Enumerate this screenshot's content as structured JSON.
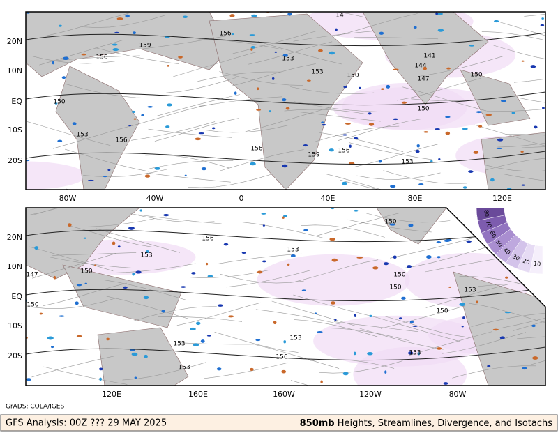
{
  "panels": [
    {
      "lat_labels": [
        "20N",
        "10N",
        "EQ",
        "10S",
        "20S"
      ],
      "lon_labels": [
        "80W",
        "40W",
        "0",
        "40E",
        "80E",
        "120E"
      ],
      "contour_labels": [
        159,
        156,
        156,
        150,
        153,
        156,
        156,
        159,
        156,
        153,
        153,
        150,
        141,
        144,
        147,
        150,
        150,
        153,
        14
      ]
    },
    {
      "lat_labels": [
        "20N",
        "10N",
        "EQ",
        "10S",
        "20S"
      ],
      "lon_labels": [
        "120E",
        "160E",
        "160W",
        "120W",
        "80W"
      ],
      "contour_labels": [
        150,
        156,
        153,
        153,
        150,
        147,
        150,
        150,
        150,
        153,
        150,
        153,
        153,
        153,
        156,
        153
      ]
    }
  ],
  "legend": {
    "values": [
      80,
      70,
      60,
      50,
      40,
      30,
      20,
      10
    ]
  },
  "credit": "GrADS: COLA/IGES",
  "footer": {
    "left": "GFS Analysis: 00Z ??? 29 MAY 2025",
    "right_bold": "850mb",
    "right": " Heights, Streamlines, Divergence, and Isotachs"
  }
}
